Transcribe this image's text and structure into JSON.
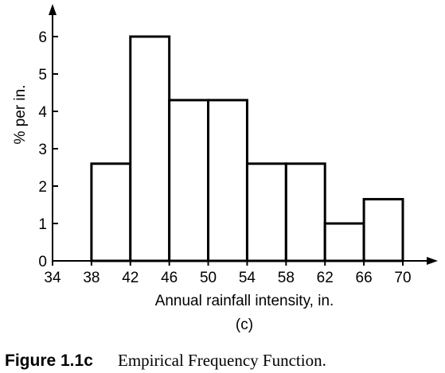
{
  "chart_data": {
    "type": "bar",
    "subtype": "histogram",
    "bin_edges": [
      38,
      42,
      46,
      50,
      54,
      58,
      62,
      66,
      70
    ],
    "values": [
      2.6,
      6.0,
      4.3,
      4.3,
      2.6,
      2.6,
      1.0,
      1.65
    ],
    "xlabel": "Annual rainfall intensity, in.",
    "ylabel": "% per in.",
    "x_ticks": [
      34,
      38,
      42,
      46,
      50,
      54,
      58,
      62,
      66,
      70
    ],
    "y_ticks": [
      0,
      1,
      2,
      3,
      4,
      5,
      6
    ],
    "xlim": [
      34,
      70
    ],
    "ylim": [
      0,
      6
    ],
    "grid": false,
    "panel_label": "(c)"
  },
  "caption": {
    "label": "Figure 1.1c",
    "text": "Empirical Frequency Function."
  },
  "colors": {
    "bar_fill": "#ffffff",
    "stroke": "#000000"
  }
}
